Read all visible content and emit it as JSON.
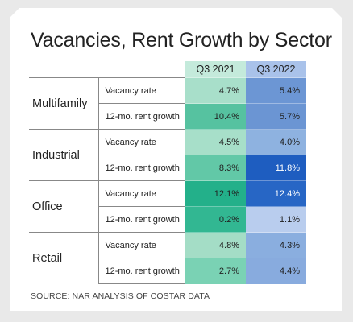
{
  "chart_data": {
    "type": "table",
    "title": "Vacancies, Rent Growth by Sector",
    "columns": [
      "Q3 2021",
      "Q3 2022"
    ],
    "rows": [
      {
        "sector": "Multifamily",
        "metric": "Vacancy rate",
        "values": [
          "4.7%",
          "5.4%"
        ],
        "numeric": [
          4.7,
          5.4
        ]
      },
      {
        "sector": "Multifamily",
        "metric": "12-mo. rent growth",
        "values": [
          "10.4%",
          "5.7%"
        ],
        "numeric": [
          10.4,
          5.7
        ]
      },
      {
        "sector": "Industrial",
        "metric": "Vacancy rate",
        "values": [
          "4.5%",
          "4.0%"
        ],
        "numeric": [
          4.5,
          4.0
        ]
      },
      {
        "sector": "Industrial",
        "metric": "12-mo. rent growth",
        "values": [
          "8.3%",
          "11.8%"
        ],
        "numeric": [
          8.3,
          11.8
        ]
      },
      {
        "sector": "Office",
        "metric": "Vacancy rate",
        "values": [
          "12.1%",
          "12.4%"
        ],
        "numeric": [
          12.1,
          12.4
        ]
      },
      {
        "sector": "Office",
        "metric": "12-mo. rent growth",
        "values": [
          "0.2%",
          "1.1%"
        ],
        "numeric": [
          0.2,
          1.1
        ]
      },
      {
        "sector": "Retail",
        "metric": "Vacancy rate",
        "values": [
          "4.8%",
          "4.3%"
        ],
        "numeric": [
          4.8,
          4.3
        ]
      },
      {
        "sector": "Retail",
        "metric": "12-mo. rent growth",
        "values": [
          "2.7%",
          "4.4%"
        ],
        "numeric": [
          2.7,
          4.4
        ]
      }
    ],
    "cell_colors": [
      [
        "#a8dfca",
        "#6c96d4"
      ],
      [
        "#56c2a0",
        "#6b95d3"
      ],
      [
        "#a7dfc9",
        "#8eb2e0"
      ],
      [
        "#62c8a7",
        "#1e5dc0"
      ],
      [
        "#23b08a",
        "#2766c5"
      ],
      [
        "#32b792",
        "#b9cdee"
      ],
      [
        "#a4ddc6",
        "#8aaedf"
      ],
      [
        "#7ad2b4",
        "#88abde"
      ]
    ],
    "column_header_colors": [
      "#c4eadb",
      "#a9c2ea"
    ],
    "light_text_cells": [
      [
        3,
        1
      ],
      [
        4,
        1
      ]
    ],
    "source": "SOURCE: NAR ANALYSIS OF COSTAR DATA"
  }
}
